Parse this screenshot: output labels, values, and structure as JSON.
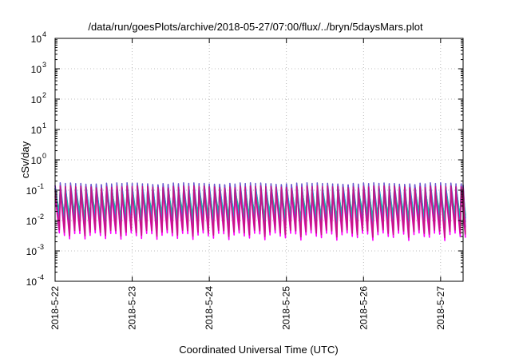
{
  "chart_data": {
    "type": "line",
    "title": "/data/run/goesPlots/archive/2018-05-27/07:00/flux/../bryn/5daysMars.plot",
    "xlabel": "Coordinated Universal Time (UTC)",
    "ylabel": "cSv/day",
    "y_scale": "log",
    "ylim": [
      0.0001,
      10000
    ],
    "y_ticks": [
      {
        "value": 0.0001,
        "base": "10",
        "exp": "-4"
      },
      {
        "value": 0.001,
        "base": "10",
        "exp": "-3"
      },
      {
        "value": 0.01,
        "base": "10",
        "exp": "-2"
      },
      {
        "value": 0.1,
        "base": "10",
        "exp": "-1"
      },
      {
        "value": 1,
        "base": "10",
        "exp": "0"
      },
      {
        "value": 10,
        "base": "10",
        "exp": "1"
      },
      {
        "value": 100,
        "base": "10",
        "exp": "2"
      },
      {
        "value": 1000,
        "base": "10",
        "exp": "3"
      },
      {
        "value": 10000,
        "base": "10",
        "exp": "4"
      }
    ],
    "xlim": [
      "2018-05-22T00:00",
      "2018-05-27T07:00"
    ],
    "x_ticks": [
      "2018-5-22",
      "2018-5-23",
      "2018-5-24",
      "2018-5-25",
      "2018-5-26",
      "2018-5-27"
    ],
    "grid": true,
    "cycle_hours": 1.6,
    "series": [
      {
        "color": "#ff00ff",
        "peak": 0.085,
        "trough": 0.003
      },
      {
        "color": "#cc1a99",
        "peak": 0.1,
        "trough": 0.0045
      },
      {
        "color": "#8a2be2",
        "peak": 0.12,
        "trough": 0.0065
      },
      {
        "color": "#6a5acd",
        "peak": 0.14,
        "trough": 0.0095
      },
      {
        "color": "#2090e0",
        "peak": 0.1,
        "trough": 0.013
      },
      {
        "color": "#20b2aa",
        "peak": 0.075,
        "trough": 0.016
      },
      {
        "color": "#c71585",
        "peak": 0.11,
        "trough": 0.0038
      }
    ]
  }
}
